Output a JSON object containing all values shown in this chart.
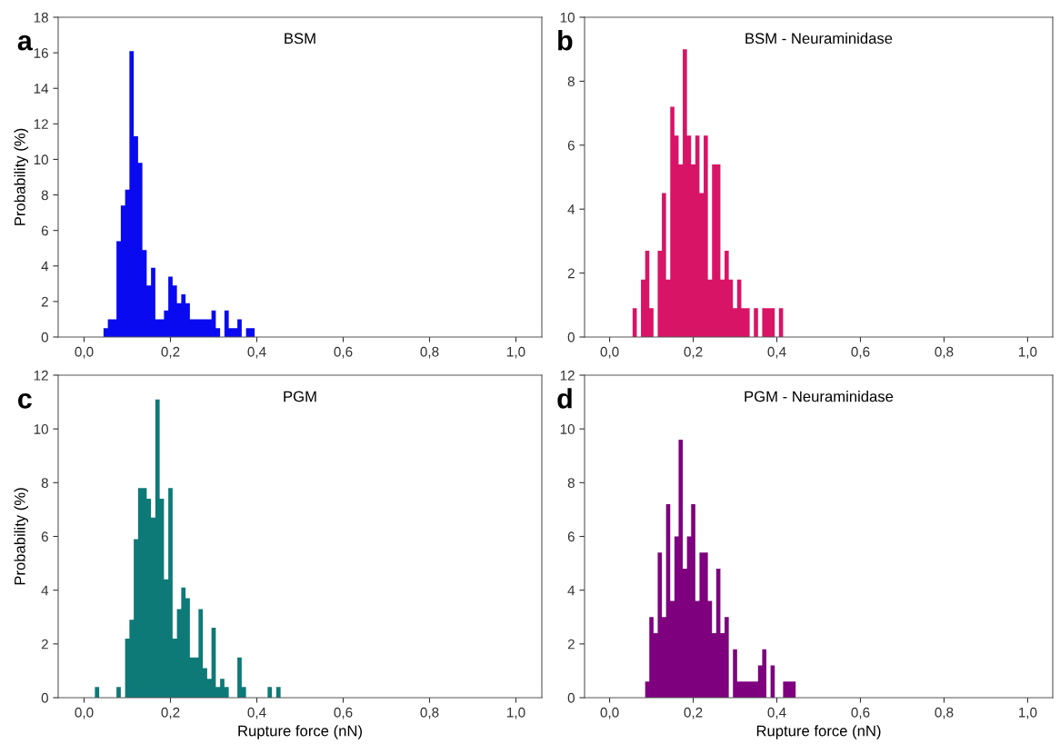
{
  "chart_data": [
    {
      "type": "histogram",
      "title": "BSM",
      "ylabel": "Probability (%)",
      "annotations": [
        "a"
      ],
      "color": "#0a0af0",
      "bins": [
        0.045,
        0.055,
        0.065,
        0.075,
        0.085,
        0.095,
        0.105,
        0.115,
        0.125,
        0.135,
        0.145,
        0.155,
        0.165,
        0.175,
        0.185,
        0.195,
        0.205,
        0.215,
        0.225,
        0.235,
        0.245,
        0.255,
        0.265,
        0.275,
        0.285,
        0.295,
        0.305,
        0.315,
        0.325,
        0.335,
        0.345,
        0.355,
        0.365,
        0.375,
        0.385,
        0.395
      ],
      "values": [
        0.5,
        1.0,
        1.0,
        5.4,
        7.4,
        8.3,
        16.1,
        11.3,
        9.8,
        4.9,
        2.9,
        3.9,
        1.0,
        1.0,
        1.5,
        3.4,
        2.9,
        1.9,
        2.4,
        1.9,
        1.0,
        1.0,
        1.0,
        1.0,
        1.0,
        1.5,
        0.5,
        0,
        1.5,
        0.5,
        0.5,
        1.0,
        0,
        0.5,
        0.5
      ],
      "xlim": [
        -0.06,
        1.06
      ],
      "ylim": [
        0,
        18
      ],
      "xticks": [
        {
          "value": 0.0,
          "label": "0,0"
        },
        {
          "value": 0.2,
          "label": "0,2"
        },
        {
          "value": 0.4,
          "label": "0,4"
        },
        {
          "value": 0.6,
          "label": "0,6"
        },
        {
          "value": 0.8,
          "label": "0,8"
        },
        {
          "value": 1.0,
          "label": "1,0"
        }
      ],
      "yticks": [
        0,
        2,
        4,
        6,
        8,
        10,
        12,
        14,
        16,
        18
      ]
    },
    {
      "type": "histogram",
      "title": "BSM - Neuraminidase",
      "annotations": [
        "b"
      ],
      "color": "#d81466",
      "bins": [
        0.055,
        0.065,
        0.075,
        0.085,
        0.095,
        0.105,
        0.115,
        0.125,
        0.135,
        0.145,
        0.155,
        0.165,
        0.175,
        0.185,
        0.195,
        0.205,
        0.215,
        0.225,
        0.235,
        0.245,
        0.255,
        0.265,
        0.275,
        0.285,
        0.295,
        0.305,
        0.315,
        0.325,
        0.335,
        0.345,
        0.355,
        0.365,
        0.375,
        0.385,
        0.395,
        0.405,
        0.415
      ],
      "values": [
        0.9,
        0,
        1.8,
        2.7,
        0.9,
        0,
        2.7,
        4.5,
        1.8,
        7.2,
        6.3,
        5.4,
        9.0,
        6.3,
        5.4,
        6.3,
        4.5,
        6.3,
        1.8,
        5.4,
        5.4,
        1.8,
        2.7,
        1.8,
        0.9,
        1.8,
        0.9,
        0.9,
        0,
        0.9,
        0,
        0.9,
        0.9,
        0.9,
        0,
        0.9
      ],
      "xlim": [
        -0.06,
        1.06
      ],
      "ylim": [
        0,
        10
      ],
      "xticks": [
        {
          "value": 0.0,
          "label": "0,0"
        },
        {
          "value": 0.2,
          "label": "0,2"
        },
        {
          "value": 0.4,
          "label": "0,4"
        },
        {
          "value": 0.6,
          "label": "0,6"
        },
        {
          "value": 0.8,
          "label": "0,8"
        },
        {
          "value": 1.0,
          "label": "1,0"
        }
      ],
      "yticks": [
        0,
        2,
        4,
        6,
        8,
        10
      ]
    },
    {
      "type": "histogram",
      "title": "PGM",
      "xlabel": "Rupture force (nN)",
      "ylabel": "Probability (%)",
      "annotations": [
        "c"
      ],
      "color": "#0d7a78",
      "bins": [
        0.025,
        0.035,
        0.045,
        0.055,
        0.065,
        0.075,
        0.085,
        0.095,
        0.105,
        0.115,
        0.125,
        0.135,
        0.145,
        0.155,
        0.165,
        0.175,
        0.185,
        0.195,
        0.205,
        0.215,
        0.225,
        0.235,
        0.245,
        0.255,
        0.265,
        0.275,
        0.285,
        0.295,
        0.305,
        0.315,
        0.325,
        0.335,
        0.345,
        0.355,
        0.365,
        0.375,
        0.385,
        0.395,
        0.405,
        0.415,
        0.425,
        0.435,
        0.445,
        0.455
      ],
      "values": [
        0.4,
        0,
        0,
        0,
        0,
        0.4,
        0,
        2.2,
        2.9,
        5.9,
        7.8,
        7.8,
        7.4,
        6.7,
        11.1,
        7.4,
        4.4,
        7.8,
        2.2,
        3.3,
        4.1,
        3.7,
        1.5,
        1.5,
        3.3,
        1.1,
        0.7,
        2.6,
        0.4,
        0.7,
        0.4,
        0,
        0,
        1.5,
        0.4,
        0,
        0,
        0,
        0,
        0,
        0.4,
        0,
        0.4
      ],
      "xlim": [
        -0.06,
        1.06
      ],
      "ylim": [
        0,
        12
      ],
      "xticks": [
        {
          "value": 0.0,
          "label": "0,0"
        },
        {
          "value": 0.2,
          "label": "0,2"
        },
        {
          "value": 0.4,
          "label": "0,4"
        },
        {
          "value": 0.6,
          "label": "0,6"
        },
        {
          "value": 0.8,
          "label": "0,8"
        },
        {
          "value": 1.0,
          "label": "1,0"
        }
      ],
      "yticks": [
        0,
        2,
        4,
        6,
        8,
        10,
        12
      ]
    },
    {
      "type": "histogram",
      "title": "PGM - Neuraminidase",
      "xlabel": "Rupture force (nN)",
      "annotations": [
        "d"
      ],
      "color": "#7e007e",
      "bins": [
        0.085,
        0.095,
        0.105,
        0.115,
        0.125,
        0.135,
        0.145,
        0.155,
        0.165,
        0.175,
        0.185,
        0.195,
        0.205,
        0.215,
        0.225,
        0.235,
        0.245,
        0.255,
        0.265,
        0.275,
        0.285,
        0.295,
        0.305,
        0.315,
        0.325,
        0.335,
        0.345,
        0.355,
        0.365,
        0.375,
        0.385,
        0.395,
        0.405,
        0.415,
        0.425,
        0.435,
        0.445
      ],
      "values": [
        0.6,
        3.0,
        2.4,
        5.4,
        3.0,
        7.2,
        3.6,
        6.0,
        9.6,
        4.8,
        6.0,
        7.2,
        3.6,
        5.4,
        5.4,
        3.6,
        2.4,
        4.8,
        2.4,
        3.0,
        0,
        1.8,
        0.6,
        0.6,
        0.6,
        0.6,
        0.6,
        1.2,
        1.8,
        0,
        1.2,
        0,
        0,
        0.6,
        0.6,
        0.6
      ],
      "xlim": [
        -0.06,
        1.06
      ],
      "ylim": [
        0,
        12
      ],
      "xticks": [
        {
          "value": 0.0,
          "label": "0,0"
        },
        {
          "value": 0.2,
          "label": "0,2"
        },
        {
          "value": 0.4,
          "label": "0,4"
        },
        {
          "value": 0.6,
          "label": "0,6"
        },
        {
          "value": 0.8,
          "label": "0,8"
        },
        {
          "value": 1.0,
          "label": "1,0"
        }
      ],
      "yticks": [
        0,
        2,
        4,
        6,
        8,
        10,
        12
      ]
    }
  ]
}
